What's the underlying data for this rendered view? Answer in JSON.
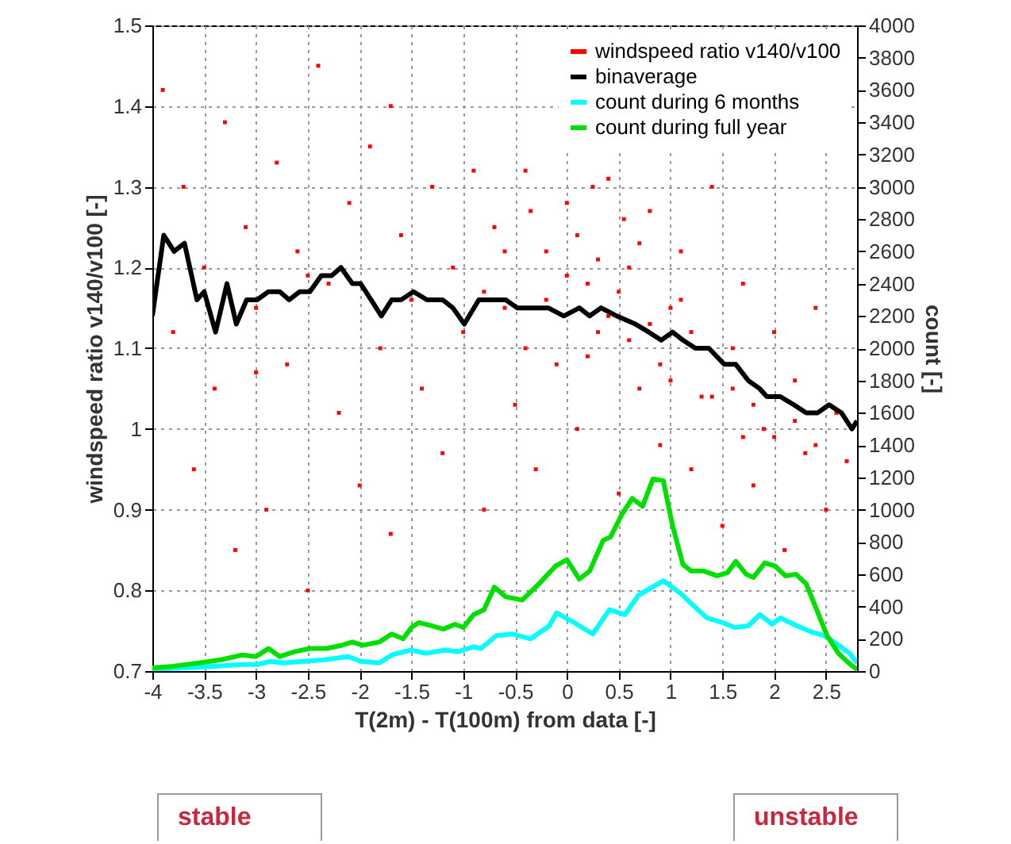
{
  "chart_data": {
    "type": "line",
    "xlabel": "T(2m) - T(100m) from data [-]",
    "ylabel": "windspeed ratio v140/v100 [-]",
    "y2label": "count [-]",
    "xlim": [
      -4,
      2.8
    ],
    "xticks": [
      -4,
      -3.5,
      -3,
      -2.5,
      -2,
      -1.5,
      -1,
      -0.5,
      0,
      0.5,
      1,
      1.5,
      2,
      2.5
    ],
    "ylim": [
      0.7,
      1.5
    ],
    "yticks": [
      0.7,
      0.8,
      0.9,
      1,
      1.1,
      1.2,
      1.3,
      1.4,
      1.5
    ],
    "y2lim": [
      0,
      4000
    ],
    "y2ticks": [
      0,
      200,
      400,
      600,
      800,
      1000,
      1200,
      1400,
      1600,
      1800,
      2000,
      2200,
      2400,
      2600,
      2800,
      3000,
      3200,
      3400,
      3600,
      3800,
      4000
    ],
    "grid": true,
    "legend": "top right",
    "annotations": [
      "stable",
      "unstable"
    ],
    "series": [
      {
        "name": "windspeed ratio v140/v100",
        "type": "scatter",
        "marker": "square",
        "color": "#ff0000",
        "x": [
          -3.9,
          -3.8,
          -3.7,
          -3.6,
          -3.5,
          -3.4,
          -3.3,
          -3.2,
          -3.1,
          -3.0,
          -2.9,
          -2.8,
          -2.7,
          -2.6,
          -2.5,
          -2.4,
          -2.3,
          -2.2,
          -2.1,
          -2.0,
          -1.9,
          -1.8,
          -1.7,
          -1.6,
          -1.7,
          -1.4,
          -1.3,
          -1.2,
          -1.1,
          -1.0,
          -0.9,
          -0.8,
          -0.7,
          -0.6,
          -0.5,
          -0.4,
          -0.3,
          -0.2,
          -0.1,
          0.0,
          0.1,
          0.2,
          0.3,
          0.4,
          0.5,
          0.6,
          0.7,
          0.8,
          0.9,
          1.0,
          1.1,
          1.2,
          1.3,
          1.4,
          1.5,
          1.6,
          1.7,
          1.8,
          1.9,
          2.0,
          2.1,
          2.2,
          2.3,
          2.4,
          2.5,
          2.6,
          2.7,
          -0.8,
          -0.6,
          -0.4,
          -0.2,
          0.0,
          0.1,
          0.2,
          0.3,
          0.4,
          0.5,
          0.6,
          0.7,
          0.8,
          0.9,
          1.0,
          1.2,
          1.4,
          1.6,
          1.8,
          2.0,
          2.2,
          2.4,
          -1.5,
          -2.5,
          -3.0,
          0.25,
          0.55,
          -0.35,
          1.1,
          1.7
        ],
        "values": [
          1.42,
          1.12,
          1.3,
          0.95,
          1.2,
          1.05,
          1.38,
          0.85,
          1.25,
          1.15,
          0.9,
          1.33,
          1.08,
          1.22,
          0.8,
          1.45,
          1.18,
          1.02,
          1.28,
          0.93,
          1.35,
          1.1,
          0.87,
          1.24,
          1.4,
          1.05,
          1.3,
          0.97,
          1.2,
          1.12,
          1.32,
          0.9,
          1.25,
          1.15,
          1.03,
          1.32,
          0.95,
          1.22,
          1.08,
          1.28,
          1.0,
          1.18,
          1.12,
          1.31,
          0.92,
          1.2,
          1.05,
          1.27,
          0.98,
          1.15,
          1.22,
          0.95,
          1.04,
          1.3,
          0.88,
          1.05,
          1.18,
          0.93,
          1.0,
          1.12,
          0.85,
          1.06,
          0.97,
          1.15,
          0.9,
          1.02,
          0.96,
          1.17,
          1.22,
          1.1,
          1.16,
          1.19,
          1.24,
          1.09,
          1.21,
          1.14,
          1.17,
          1.11,
          1.23,
          1.13,
          1.08,
          1.06,
          1.12,
          1.04,
          1.1,
          1.03,
          0.99,
          1.01,
          0.98,
          1.16,
          1.19,
          1.07,
          1.3,
          1.26,
          1.27,
          1.16,
          0.99
        ]
      },
      {
        "name": "binaverage",
        "color": "#000000",
        "x": [
          -4.0,
          -3.89,
          -3.79,
          -3.69,
          -3.57,
          -3.5,
          -3.39,
          -3.28,
          -3.19,
          -3.09,
          -2.99,
          -2.88,
          -2.77,
          -2.68,
          -2.58,
          -2.48,
          -2.37,
          -2.27,
          -2.18,
          -2.07,
          -1.99,
          -1.89,
          -1.79,
          -1.69,
          -1.6,
          -1.48,
          -1.35,
          -1.2,
          -1.1,
          -0.99,
          -0.85,
          -0.72,
          -0.59,
          -0.48,
          -0.33,
          -0.18,
          -0.03,
          0.12,
          0.22,
          0.33,
          0.48,
          0.66,
          0.79,
          0.91,
          1.02,
          1.12,
          1.24,
          1.37,
          1.52,
          1.63,
          1.75,
          1.86,
          1.93,
          2.06,
          2.19,
          2.31,
          2.42,
          2.53,
          2.65,
          2.75,
          2.8
        ],
        "values": [
          1.14,
          1.24,
          1.22,
          1.23,
          1.16,
          1.17,
          1.12,
          1.18,
          1.13,
          1.16,
          1.16,
          1.17,
          1.17,
          1.16,
          1.17,
          1.17,
          1.19,
          1.19,
          1.2,
          1.18,
          1.18,
          1.16,
          1.14,
          1.16,
          1.16,
          1.17,
          1.16,
          1.16,
          1.15,
          1.13,
          1.16,
          1.16,
          1.16,
          1.15,
          1.15,
          1.15,
          1.14,
          1.15,
          1.14,
          1.15,
          1.14,
          1.13,
          1.12,
          1.11,
          1.12,
          1.11,
          1.1,
          1.1,
          1.08,
          1.08,
          1.06,
          1.05,
          1.04,
          1.04,
          1.03,
          1.02,
          1.02,
          1.03,
          1.02,
          1.0,
          1.01
        ]
      },
      {
        "name": "count during 6 months",
        "axis": "y2",
        "color": "#00ffff",
        "x": [
          -4.0,
          -3.7,
          -3.39,
          -3.14,
          -2.99,
          -2.86,
          -2.74,
          -2.54,
          -2.34,
          -2.11,
          -1.99,
          -1.81,
          -1.69,
          -1.51,
          -1.36,
          -1.18,
          -1.05,
          -0.9,
          -0.83,
          -0.68,
          -0.53,
          -0.35,
          -0.17,
          -0.1,
          0.07,
          0.25,
          0.41,
          0.56,
          0.69,
          0.93,
          1.1,
          1.23,
          1.35,
          1.5,
          1.62,
          1.75,
          1.86,
          1.98,
          2.06,
          2.22,
          2.37,
          2.48,
          2.6,
          2.73,
          2.8
        ],
        "values": [
          10,
          20,
          30,
          40,
          40,
          60,
          50,
          60,
          70,
          90,
          60,
          50,
          100,
          130,
          110,
          130,
          120,
          150,
          140,
          220,
          230,
          200,
          280,
          360,
          300,
          230,
          380,
          350,
          470,
          560,
          480,
          400,
          330,
          300,
          270,
          280,
          350,
          290,
          330,
          280,
          240,
          220,
          170,
          110,
          50
        ]
      },
      {
        "name": "count during full year",
        "axis": "y2",
        "color": "#00e000",
        "x": [
          -4.0,
          -3.8,
          -3.55,
          -3.34,
          -3.13,
          -3.0,
          -2.88,
          -2.77,
          -2.63,
          -2.48,
          -2.32,
          -2.17,
          -2.07,
          -1.97,
          -1.81,
          -1.69,
          -1.58,
          -1.5,
          -1.43,
          -1.3,
          -1.19,
          -1.08,
          -1.0,
          -0.9,
          -0.8,
          -0.7,
          -0.59,
          -0.43,
          -0.27,
          -0.11,
          0.0,
          0.12,
          0.22,
          0.35,
          0.42,
          0.53,
          0.63,
          0.73,
          0.83,
          0.93,
          1.02,
          1.12,
          1.2,
          1.32,
          1.45,
          1.55,
          1.63,
          1.73,
          1.8,
          1.91,
          2.01,
          2.11,
          2.21,
          2.31,
          2.41,
          2.51,
          2.62,
          2.72,
          2.8
        ],
        "values": [
          20,
          30,
          50,
          70,
          100,
          90,
          140,
          90,
          120,
          140,
          140,
          160,
          180,
          160,
          180,
          230,
          200,
          270,
          300,
          280,
          260,
          290,
          270,
          350,
          380,
          520,
          460,
          440,
          540,
          650,
          690,
          570,
          620,
          810,
          830,
          970,
          1070,
          1020,
          1190,
          1180,
          900,
          660,
          620,
          620,
          590,
          610,
          680,
          600,
          580,
          670,
          650,
          590,
          600,
          540,
          380,
          220,
          110,
          50,
          10
        ]
      }
    ]
  }
}
